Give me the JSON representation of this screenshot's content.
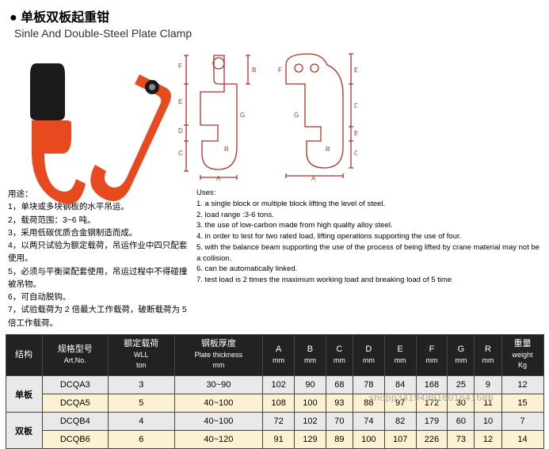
{
  "header": {
    "title_cn": "单板双板起重钳",
    "title_en": "Sinle And Double-Steel Plate Clamp"
  },
  "diagram_labels": {
    "left": [
      "F",
      "E",
      "D",
      "C",
      "B",
      "A",
      "G",
      "R"
    ],
    "right": [
      "E",
      "D",
      "B",
      "C",
      "A",
      "G",
      "R",
      "F"
    ]
  },
  "uses_cn": {
    "head": "用途：",
    "items": [
      "1，单块或多块钢板的水平吊运。",
      "2，载荷范围：3~6 吨。",
      "3，采用低碳优质合金钢制造而成。",
      "4，以两只试验为额定载荷，吊运作业中四只配套使用。",
      "5，必须与平衡梁配套使用，吊运过程中不得碰撞被吊物。",
      "6，可自动脱钩。",
      "7，试验载荷为 2 倍最大工作载荷，破断载荷为 5 倍工作载荷。"
    ]
  },
  "uses_en": {
    "head": "Uses:",
    "items": [
      "1. a single block or multiple block lifting the level of steel.",
      "2. load range :3-6 tons.",
      "3. the use of low-carbon made from high quality alloy steel.",
      "4. in order to test for two rated load, lifting operations supporting the use of four.",
      "5. with the balance beam supporting the use of the process of being lifted by crane material may not be a collision.",
      "6. can be automatically linked.",
      "7. test load is 2 times the maximum working load and breaking load of 5 time"
    ]
  },
  "table": {
    "headers": [
      {
        "cn": "结构",
        "en": ""
      },
      {
        "cn": "规格型号",
        "en": "Art.No."
      },
      {
        "cn": "额定载荷",
        "en": "WLL<br>ton"
      },
      {
        "cn": "钢板厚度",
        "en": "Plate thickness<br>mm"
      },
      {
        "cn": "A",
        "en": "mm"
      },
      {
        "cn": "B",
        "en": "mm"
      },
      {
        "cn": "C",
        "en": "mm"
      },
      {
        "cn": "D",
        "en": "mm"
      },
      {
        "cn": "E",
        "en": "mm"
      },
      {
        "cn": "F",
        "en": "mm"
      },
      {
        "cn": "G",
        "en": "mm"
      },
      {
        "cn": "R",
        "en": "mm"
      },
      {
        "cn": "重量",
        "en": "weight<br>Kg"
      }
    ],
    "groups": [
      {
        "name": "单板",
        "rows": [
          {
            "art": "DCQA3",
            "wll": "3",
            "thk": "30~90",
            "A": "102",
            "B": "90",
            "C": "68",
            "D": "78",
            "E": "84",
            "F": "168",
            "G": "25",
            "R": "9",
            "W": "12",
            "cls": "odd"
          },
          {
            "art": "DCQA5",
            "wll": "5",
            "thk": "40~100",
            "A": "108",
            "B": "100",
            "C": "93",
            "D": "88",
            "E": "97",
            "F": "172",
            "G": "30",
            "R": "11",
            "W": "15",
            "cls": "even"
          }
        ]
      },
      {
        "name": "双板",
        "rows": [
          {
            "art": "DCQB4",
            "wll": "4",
            "thk": "40~100",
            "A": "72",
            "B": "102",
            "C": "70",
            "D": "74",
            "E": "82",
            "F": "179",
            "G": "60",
            "R": "10",
            "W": "7",
            "cls": "odd"
          },
          {
            "art": "DCQB6",
            "wll": "6",
            "thk": "40~120",
            "A": "91",
            "B": "129",
            "C": "89",
            "D": "100",
            "E": "107",
            "F": "226",
            "G": "73",
            "R": "12",
            "W": "14",
            "cls": "even"
          }
        ]
      }
    ]
  },
  "watermark": "shopp34194991601641686",
  "colors": {
    "hook_body": "#e84a1f",
    "hook_top": "#1a1a1a",
    "diagram_stroke": "#b03028"
  }
}
